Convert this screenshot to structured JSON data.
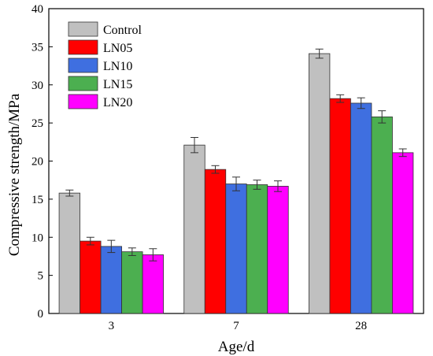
{
  "chart_data": {
    "type": "bar",
    "categories": [
      "3",
      "7",
      "28"
    ],
    "series": [
      {
        "name": "Control",
        "values": [
          15.8,
          22.1,
          34.1
        ],
        "errors": [
          0.4,
          1.0,
          0.6
        ],
        "color": "#c0c0c0"
      },
      {
        "name": "LN05",
        "values": [
          9.5,
          18.9,
          28.2
        ],
        "errors": [
          0.5,
          0.5,
          0.5
        ],
        "color": "#ff0000"
      },
      {
        "name": "LN10",
        "values": [
          8.8,
          17.0,
          27.6
        ],
        "errors": [
          0.8,
          0.9,
          0.7
        ],
        "color": "#3f6fe0"
      },
      {
        "name": "LN15",
        "values": [
          8.1,
          16.9,
          25.8
        ],
        "errors": [
          0.5,
          0.6,
          0.8
        ],
        "color": "#4caf50"
      },
      {
        "name": "LN20",
        "values": [
          7.7,
          16.7,
          21.1
        ],
        "errors": [
          0.8,
          0.7,
          0.5
        ],
        "color": "#ff00ff"
      }
    ],
    "xlabel": "Age/d",
    "ylabel": "Compressive strength/MPa",
    "ylim": [
      0,
      40
    ],
    "yticks": [
      0,
      5,
      10,
      15,
      20,
      25,
      30,
      35,
      40
    ],
    "grid": false,
    "legend_position": "top-left"
  }
}
